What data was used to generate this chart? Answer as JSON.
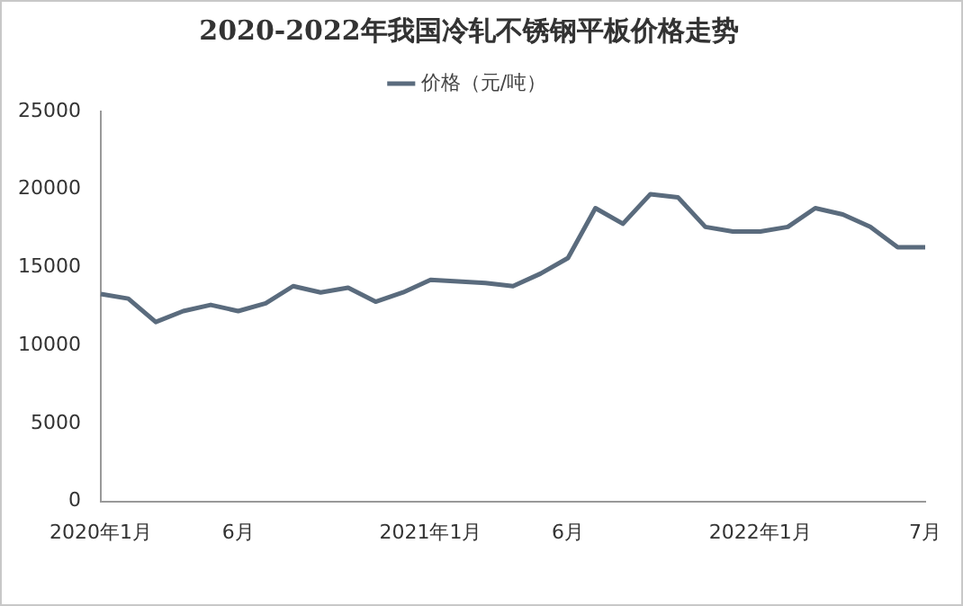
{
  "chart_data": {
    "type": "line",
    "title": "2020-2022年我国冷轧不锈钢平板价格走势",
    "categories": [
      "2020年1月",
      null,
      null,
      null,
      null,
      "6月",
      null,
      null,
      null,
      null,
      null,
      null,
      "2021年1月",
      null,
      null,
      null,
      null,
      "6月",
      null,
      null,
      null,
      null,
      null,
      null,
      "2022年1月",
      null,
      null,
      null,
      null,
      null,
      "7月"
    ],
    "series": [
      {
        "name": "价格（元/吨）",
        "color": "#5a6b7d",
        "values": [
          13300,
          13000,
          11500,
          12200,
          12600,
          12200,
          12700,
          13800,
          13400,
          13700,
          12800,
          13400,
          14200,
          14100,
          14000,
          13800,
          14600,
          15600,
          18800,
          17800,
          19700,
          19500,
          17600,
          17300,
          17300,
          17600,
          18800,
          18400,
          17600,
          16300,
          16300
        ]
      }
    ],
    "ylim": [
      0,
      25000
    ],
    "yticks": [
      0,
      5000,
      10000,
      15000,
      20000,
      25000
    ],
    "grid": false,
    "legend": "top",
    "marker": "none",
    "line_style": "solid"
  }
}
